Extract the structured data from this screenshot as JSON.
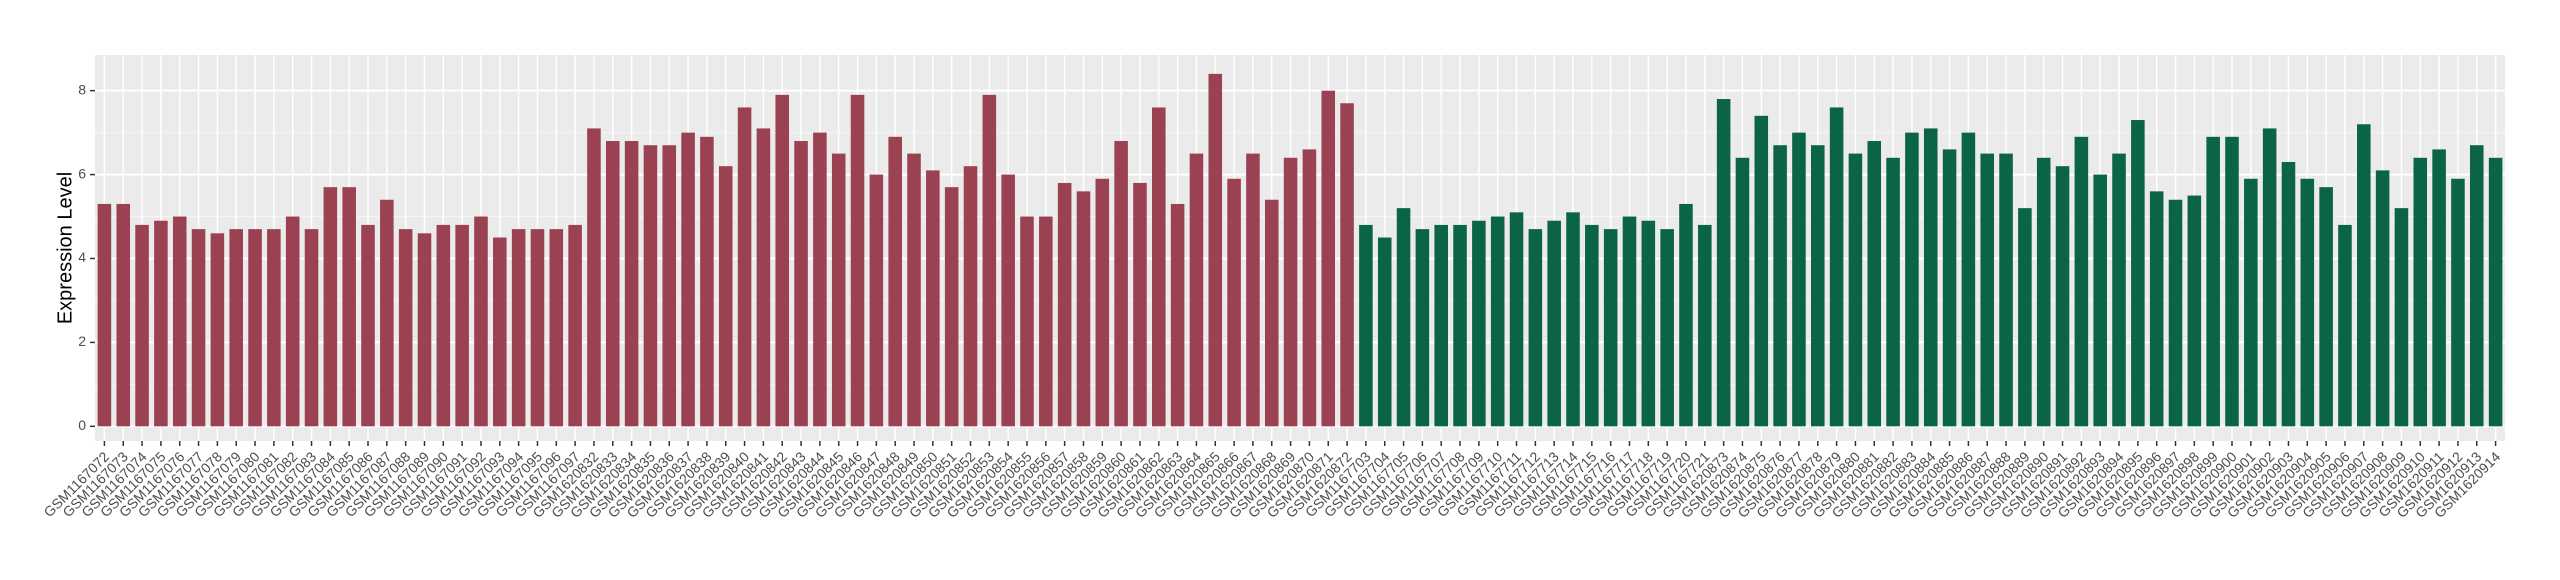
{
  "chart_data": {
    "type": "bar",
    "y_label": "Expression Level",
    "categories": [
      "GSM1167072",
      "GSM1167073",
      "GSM1167074",
      "GSM1167075",
      "GSM1167076",
      "GSM1167077",
      "GSM1167078",
      "GSM1167079",
      "GSM1167080",
      "GSM1167081",
      "GSM1167082",
      "GSM1167083",
      "GSM1167084",
      "GSM1167085",
      "GSM1167086",
      "GSM1167087",
      "GSM1167088",
      "GSM1167089",
      "GSM1167090",
      "GSM1167091",
      "GSM1167092",
      "GSM1167093",
      "GSM1167094",
      "GSM1167095",
      "GSM1167096",
      "GSM1167097",
      "GSM1620832",
      "GSM1620833",
      "GSM1620834",
      "GSM1620835",
      "GSM1620836",
      "GSM1620837",
      "GSM1620838",
      "GSM1620839",
      "GSM1620840",
      "GSM1620841",
      "GSM1620842",
      "GSM1620843",
      "GSM1620844",
      "GSM1620845",
      "GSM1620846",
      "GSM1620847",
      "GSM1620848",
      "GSM1620849",
      "GSM1620850",
      "GSM1620851",
      "GSM1620852",
      "GSM1620853",
      "GSM1620854",
      "GSM1620855",
      "GSM1620856",
      "GSM1620857",
      "GSM1620858",
      "GSM1620859",
      "GSM1620860",
      "GSM1620861",
      "GSM1620862",
      "GSM1620863",
      "GSM1620864",
      "GSM1620865",
      "GSM1620866",
      "GSM1620867",
      "GSM1620868",
      "GSM1620869",
      "GSM1620870",
      "GSM1620871",
      "GSM1620872",
      "GSM1167703",
      "GSM1167704",
      "GSM1167705",
      "GSM1167706",
      "GSM1167707",
      "GSM1167708",
      "GSM1167709",
      "GSM1167710",
      "GSM1167711",
      "GSM1167712",
      "GSM1167713",
      "GSM1167714",
      "GSM1167715",
      "GSM1167716",
      "GSM1167717",
      "GSM1167718",
      "GSM1167719",
      "GSM1167720",
      "GSM1167721",
      "GSM1620873",
      "GSM1620874",
      "GSM1620875",
      "GSM1620876",
      "GSM1620877",
      "GSM1620878",
      "GSM1620879",
      "GSM1620880",
      "GSM1620881",
      "GSM1620882",
      "GSM1620883",
      "GSM1620884",
      "GSM1620885",
      "GSM1620886",
      "GSM1620887",
      "GSM1620888",
      "GSM1620889",
      "GSM1620890",
      "GSM1620891",
      "GSM1620892",
      "GSM1620893",
      "GSM1620894",
      "GSM1620895",
      "GSM1620896",
      "GSM1620897",
      "GSM1620898",
      "GSM1620899",
      "GSM1620900",
      "GSM1620901",
      "GSM1620902",
      "GSM1620903",
      "GSM1620904",
      "GSM1620905",
      "GSM1620906",
      "GSM1620907",
      "GSM1620908",
      "GSM1620909",
      "GSM1620910",
      "GSM1620911",
      "GSM1620912",
      "GSM1620913",
      "GSM1620914"
    ],
    "values": [
      5.3,
      5.3,
      4.8,
      4.9,
      5.0,
      4.7,
      4.6,
      4.7,
      4.7,
      4.7,
      5.0,
      4.7,
      5.7,
      5.7,
      4.8,
      5.4,
      4.7,
      4.6,
      4.8,
      4.8,
      5.0,
      4.5,
      4.7,
      4.7,
      4.7,
      4.8,
      7.1,
      6.8,
      6.8,
      6.7,
      6.7,
      7.0,
      6.9,
      6.2,
      7.6,
      7.1,
      7.9,
      6.8,
      7.0,
      6.5,
      7.9,
      6.0,
      6.9,
      6.5,
      6.1,
      5.7,
      6.2,
      7.9,
      6.0,
      5.0,
      5.0,
      5.8,
      5.6,
      5.9,
      6.8,
      5.8,
      7.6,
      5.3,
      6.5,
      8.4,
      5.9,
      6.5,
      5.4,
      6.4,
      6.6,
      8.0,
      7.7,
      4.8,
      4.5,
      5.2,
      4.7,
      4.8,
      4.8,
      4.9,
      5.0,
      5.1,
      4.7,
      4.9,
      5.1,
      4.8,
      4.7,
      5.0,
      4.9,
      4.7,
      5.3,
      4.8,
      7.8,
      6.4,
      7.4,
      6.7,
      7.0,
      6.7,
      7.6,
      6.5,
      6.8,
      6.4,
      7.0,
      7.1,
      6.6,
      7.0,
      6.5,
      6.5,
      5.2,
      6.4,
      6.2,
      6.9,
      6.0,
      6.5,
      7.3,
      5.6,
      5.4,
      5.5,
      6.9,
      6.9,
      5.9,
      7.1,
      6.3,
      5.9,
      5.7,
      4.8,
      7.2,
      6.1,
      5.2,
      6.4,
      6.6,
      5.9,
      6.7,
      6.4
    ],
    "colors": [
      "#9a4252",
      "#9a4252",
      "#9a4252",
      "#9a4252",
      "#9a4252",
      "#9a4252",
      "#9a4252",
      "#9a4252",
      "#9a4252",
      "#9a4252",
      "#9a4252",
      "#9a4252",
      "#9a4252",
      "#9a4252",
      "#9a4252",
      "#9a4252",
      "#9a4252",
      "#9a4252",
      "#9a4252",
      "#9a4252",
      "#9a4252",
      "#9a4252",
      "#9a4252",
      "#9a4252",
      "#9a4252",
      "#9a4252",
      "#9a4252",
      "#9a4252",
      "#9a4252",
      "#9a4252",
      "#9a4252",
      "#9a4252",
      "#9a4252",
      "#9a4252",
      "#9a4252",
      "#9a4252",
      "#9a4252",
      "#9a4252",
      "#9a4252",
      "#9a4252",
      "#9a4252",
      "#9a4252",
      "#9a4252",
      "#9a4252",
      "#9a4252",
      "#9a4252",
      "#9a4252",
      "#9a4252",
      "#9a4252",
      "#9a4252",
      "#9a4252",
      "#9a4252",
      "#9a4252",
      "#9a4252",
      "#9a4252",
      "#9a4252",
      "#9a4252",
      "#9a4252",
      "#9a4252",
      "#9a4252",
      "#9a4252",
      "#9a4252",
      "#9a4252",
      "#9a4252",
      "#9a4252",
      "#9a4252",
      "#9a4252",
      "#0b6545",
      "#0b6545",
      "#0b6545",
      "#0b6545",
      "#0b6545",
      "#0b6545",
      "#0b6545",
      "#0b6545",
      "#0b6545",
      "#0b6545",
      "#0b6545",
      "#0b6545",
      "#0b6545",
      "#0b6545",
      "#0b6545",
      "#0b6545",
      "#0b6545",
      "#0b6545",
      "#0b6545",
      "#0b6545",
      "#0b6545",
      "#0b6545",
      "#0b6545",
      "#0b6545",
      "#0b6545",
      "#0b6545",
      "#0b6545",
      "#0b6545",
      "#0b6545",
      "#0b6545",
      "#0b6545",
      "#0b6545",
      "#0b6545",
      "#0b6545",
      "#0b6545",
      "#0b6545",
      "#0b6545",
      "#0b6545",
      "#0b6545",
      "#0b6545",
      "#0b6545",
      "#0b6545",
      "#0b6545",
      "#0b6545",
      "#0b6545",
      "#0b6545",
      "#0b6545",
      "#0b6545",
      "#0b6545",
      "#0b6545",
      "#0b6545",
      "#0b6545",
      "#0b6545",
      "#0b6545",
      "#0b6545",
      "#0b6545",
      "#0b6545",
      "#0b6545",
      "#0b6545",
      "#0b6545",
      "#0b6545"
    ],
    "ylim": [
      -0.35,
      8.85
    ],
    "yticks": [
      0,
      2,
      4,
      6,
      8
    ],
    "grid": true
  }
}
